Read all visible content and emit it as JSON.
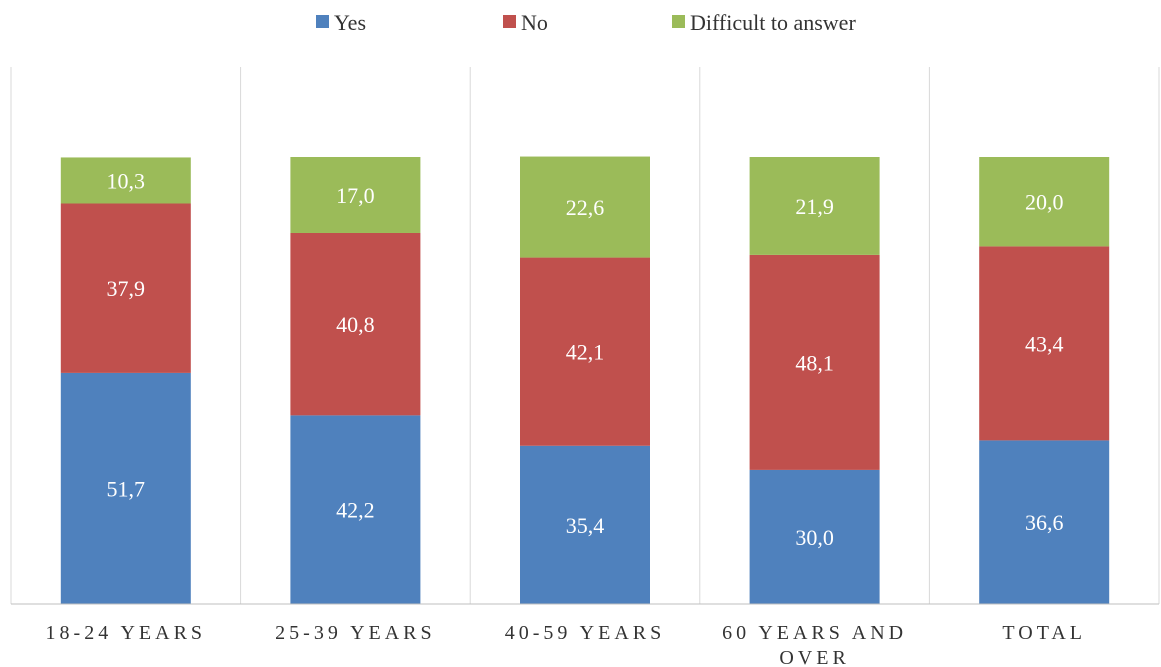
{
  "chart_data": {
    "type": "bar",
    "stacked": true,
    "categories": [
      [
        "18-24 YEARS"
      ],
      [
        "25-39 YEARS"
      ],
      [
        "40-59 YEARS"
      ],
      [
        "60 YEARS AND",
        "OVER"
      ],
      [
        "TOTAL"
      ]
    ],
    "series": [
      {
        "name": "Yes",
        "color": "#4f81bd",
        "values": [
          51.7,
          42.2,
          35.4,
          30.0,
          36.6
        ],
        "labels": [
          "51,7",
          "42,2",
          "35,4",
          "30,0",
          "36,6"
        ]
      },
      {
        "name": "No",
        "color": "#c0504d",
        "values": [
          37.9,
          40.8,
          42.1,
          48.1,
          43.4
        ],
        "labels": [
          "37,9",
          "40,8",
          "42,1",
          "48,1",
          "43,4"
        ]
      },
      {
        "name": "Difficult to answer",
        "color": "#9bbb59",
        "values": [
          10.3,
          17.0,
          22.6,
          21.9,
          20.0
        ],
        "labels": [
          "10,3",
          "17,0",
          "22,6",
          "21,9",
          "20,0"
        ]
      }
    ],
    "title": "",
    "xlabel": "",
    "ylabel": "",
    "ylim": [
      0,
      120
    ],
    "grid": "vertical separators",
    "legend_position": "top"
  }
}
